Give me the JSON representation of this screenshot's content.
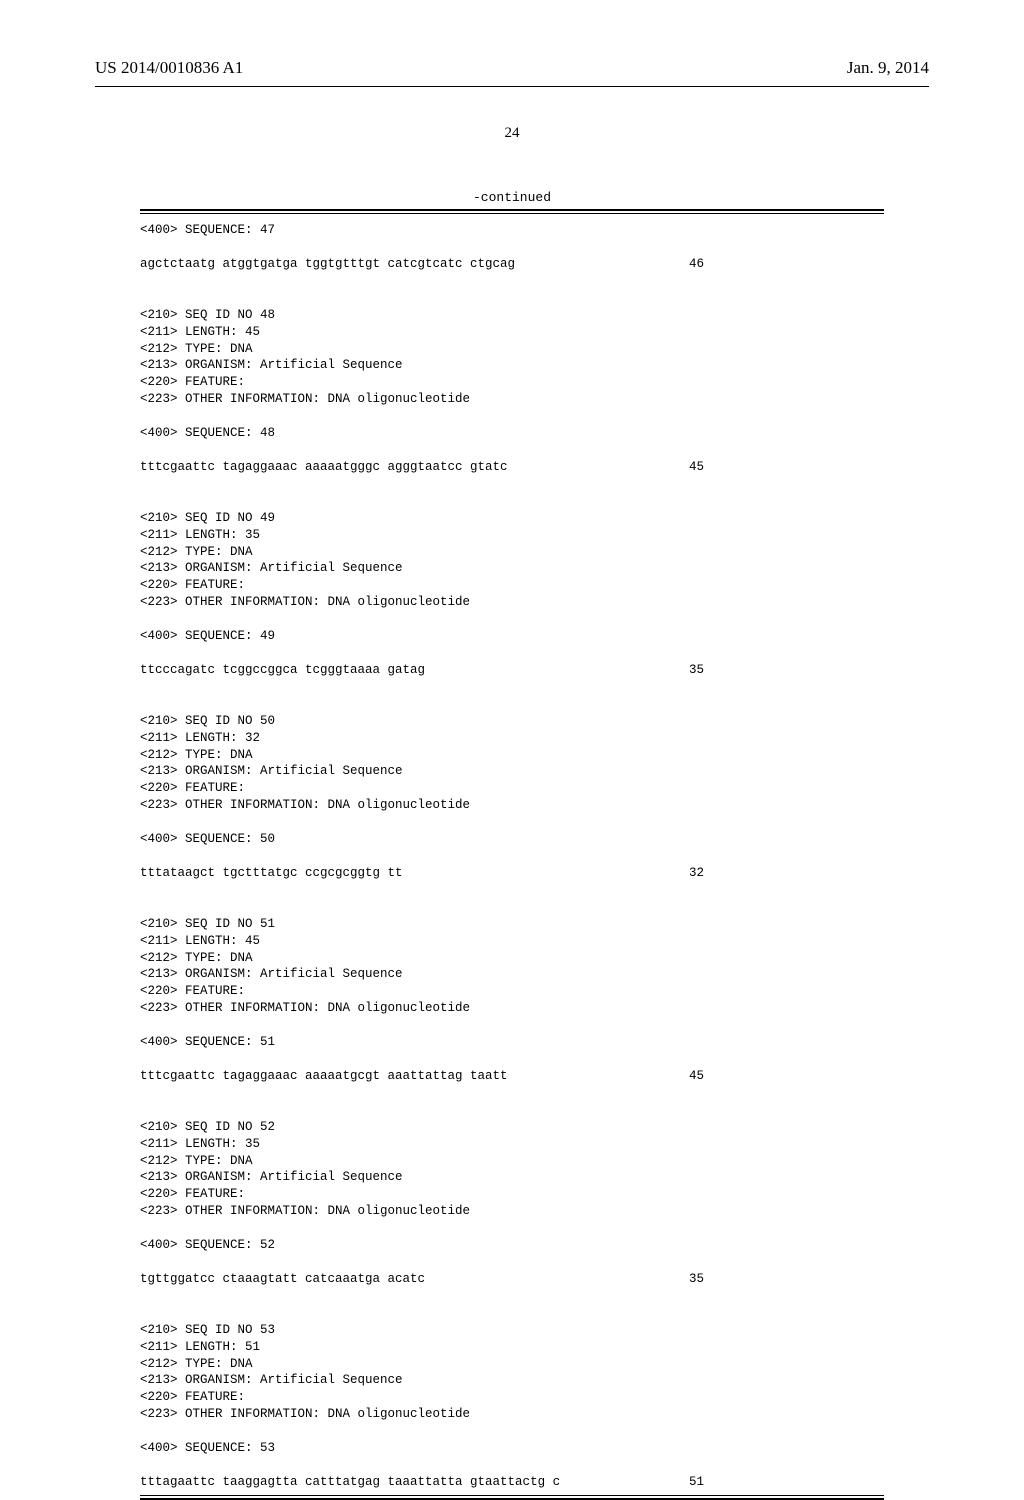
{
  "header": {
    "pub_number": "US 2014/0010836 A1",
    "pub_date": "Jan. 9, 2014"
  },
  "page_number": "24",
  "continued": "-continued",
  "entries": [
    {
      "sequence_header": "<400> SEQUENCE: 47",
      "sequence": "agctctaatg atggtgatga tggtgtttgt catcgtcatc ctgcag",
      "length": "46",
      "meta": null
    },
    {
      "meta": [
        "<210> SEQ ID NO 48",
        "<211> LENGTH: 45",
        "<212> TYPE: DNA",
        "<213> ORGANISM: Artificial Sequence",
        "<220> FEATURE:",
        "<223> OTHER INFORMATION: DNA oligonucleotide"
      ],
      "sequence_header": "<400> SEQUENCE: 48",
      "sequence": "tttcgaattc tagaggaaac aaaaatgggc agggtaatcc gtatc",
      "length": "45"
    },
    {
      "meta": [
        "<210> SEQ ID NO 49",
        "<211> LENGTH: 35",
        "<212> TYPE: DNA",
        "<213> ORGANISM: Artificial Sequence",
        "<220> FEATURE:",
        "<223> OTHER INFORMATION: DNA oligonucleotide"
      ],
      "sequence_header": "<400> SEQUENCE: 49",
      "sequence": "ttcccagatc tcggccggca tcgggtaaaa gatag",
      "length": "35"
    },
    {
      "meta": [
        "<210> SEQ ID NO 50",
        "<211> LENGTH: 32",
        "<212> TYPE: DNA",
        "<213> ORGANISM: Artificial Sequence",
        "<220> FEATURE:",
        "<223> OTHER INFORMATION: DNA oligonucleotide"
      ],
      "sequence_header": "<400> SEQUENCE: 50",
      "sequence": "tttataagct tgctttatgc ccgcgcggtg tt",
      "length": "32"
    },
    {
      "meta": [
        "<210> SEQ ID NO 51",
        "<211> LENGTH: 45",
        "<212> TYPE: DNA",
        "<213> ORGANISM: Artificial Sequence",
        "<220> FEATURE:",
        "<223> OTHER INFORMATION: DNA oligonucleotide"
      ],
      "sequence_header": "<400> SEQUENCE: 51",
      "sequence": "tttcgaattc tagaggaaac aaaaatgcgt aaattattag taatt",
      "length": "45"
    },
    {
      "meta": [
        "<210> SEQ ID NO 52",
        "<211> LENGTH: 35",
        "<212> TYPE: DNA",
        "<213> ORGANISM: Artificial Sequence",
        "<220> FEATURE:",
        "<223> OTHER INFORMATION: DNA oligonucleotide"
      ],
      "sequence_header": "<400> SEQUENCE: 52",
      "sequence": "tgttggatcc ctaaagtatt catcaaatga acatc",
      "length": "35"
    },
    {
      "meta": [
        "<210> SEQ ID NO 53",
        "<211> LENGTH: 51",
        "<212> TYPE: DNA",
        "<213> ORGANISM: Artificial Sequence",
        "<220> FEATURE:",
        "<223> OTHER INFORMATION: DNA oligonucleotide"
      ],
      "sequence_header": "<400> SEQUENCE: 53",
      "sequence": "tttagaattc taaggagtta catttatgag taaattatta gtaattactg c",
      "length": "51"
    }
  ]
}
